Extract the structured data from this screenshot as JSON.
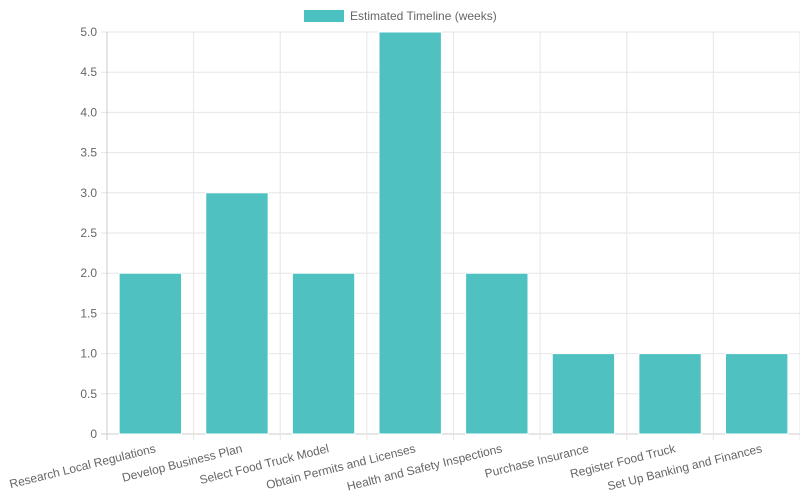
{
  "chart_data": {
    "type": "bar",
    "categories": [
      "Research Local Regulations",
      "Develop Business Plan",
      "Select Food Truck Model",
      "Obtain Permits and Licenses",
      "Health and Safety Inspections",
      "Purchase Insurance",
      "Register Food Truck",
      "Set Up Banking and Finances"
    ],
    "series": [
      {
        "name": "Estimated Timeline (weeks)",
        "values": [
          2,
          3,
          2,
          5,
          2,
          1,
          1,
          1
        ],
        "color": "#4bc0c0"
      }
    ],
    "ylim": [
      0,
      5
    ],
    "yticks": [
      "0",
      "0.5",
      "1.0",
      "1.5",
      "2.0",
      "2.5",
      "3.0",
      "3.5",
      "4.0",
      "4.5",
      "5.0"
    ],
    "grid": true,
    "legend_position": "top-center"
  }
}
